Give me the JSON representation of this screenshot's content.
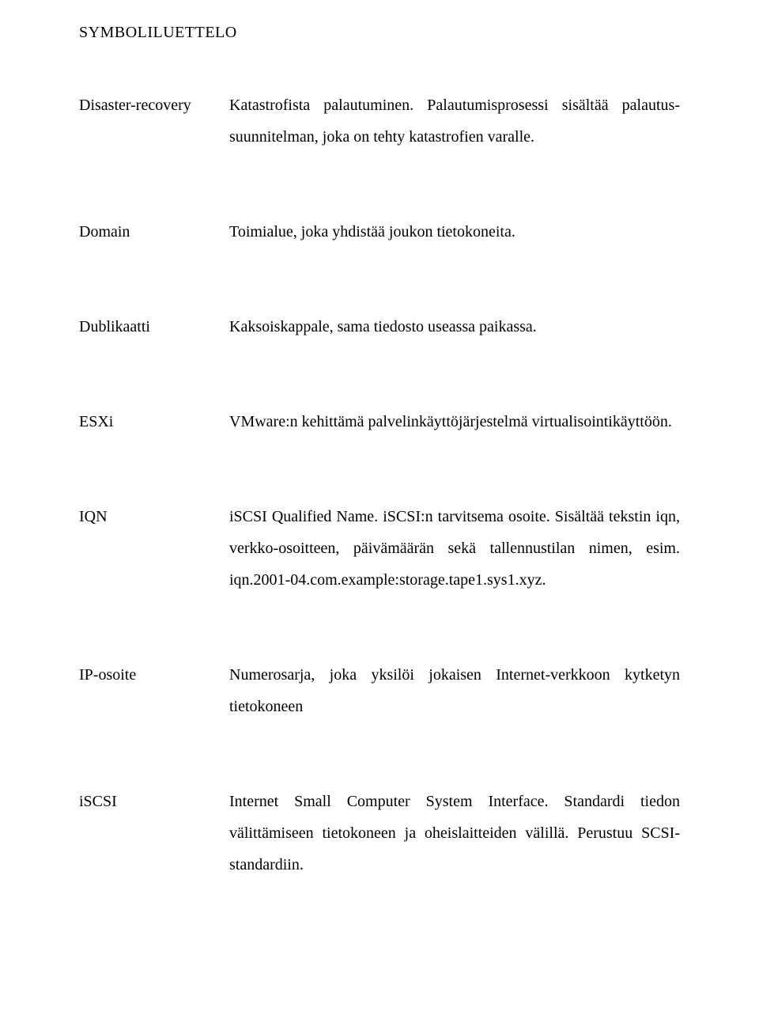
{
  "heading": "SYMBOLILUETTELO",
  "entries": [
    {
      "term": "Disaster-recovery",
      "definition": "Katastrofista palautuminen. Palautumisprosessi sisältää palautus-suunnitelman, joka on tehty katastrofien varalle."
    },
    {
      "term": "Domain",
      "definition": "Toimialue, joka yhdistää joukon tietokoneita."
    },
    {
      "term": "Dublikaatti",
      "definition": "Kaksoiskappale, sama tiedosto useassa paikassa."
    },
    {
      "term": "ESXi",
      "definition": "VMware:n kehittämä palvelinkäyttöjärjestelmä virtualisointikäyttöön."
    },
    {
      "term": "IQN",
      "definition": "iSCSI Qualified Name. iSCSI:n tarvitsema osoite. Sisältää tekstin iqn, verkko-osoitteen, päivämäärän sekä tallennustilan nimen, esim. iqn.2001-04.com.example:storage.tape1.sys1.xyz."
    },
    {
      "term": "IP-osoite",
      "definition": "Numerosarja, joka yksilöi jokaisen Internet-verkkoon kytketyn tietokoneen"
    },
    {
      "term": "iSCSI",
      "definition": "Internet Small Computer System Interface. Standardi tiedon välittämiseen tietokoneen ja oheislaitteiden välillä. Perustuu SCSI-standardiin."
    }
  ]
}
